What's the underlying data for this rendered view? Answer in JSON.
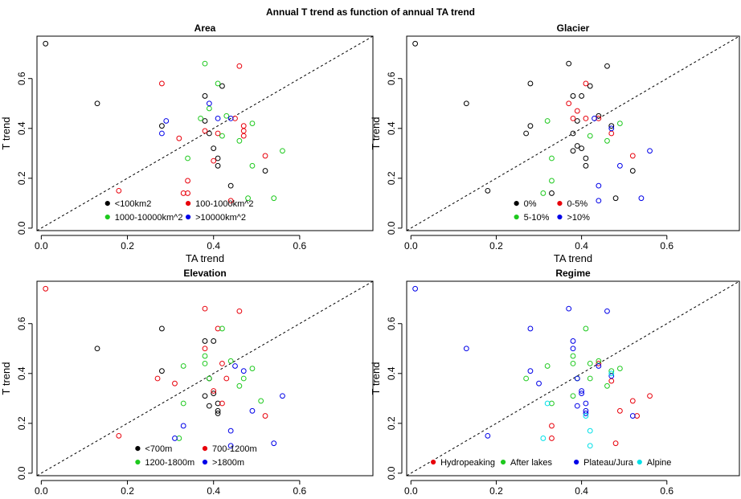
{
  "figure": {
    "title": "Annual T trend as function of annual TA trend"
  },
  "chart_data": [
    {
      "type": "scatter",
      "title": "Area",
      "xlabel": "TA trend",
      "ylabel": "T trend",
      "xlim": [
        -0.01,
        0.77
      ],
      "ylim": [
        -0.01,
        0.77
      ],
      "xticks": [
        "0.0",
        "0.2",
        "0.4",
        "0.6"
      ],
      "yticks": [
        "0.0",
        "0.2",
        "0.4",
        "0.6"
      ],
      "reference_line": "y = x (dashed)",
      "legend_position": "bottom-center",
      "series": [
        {
          "name": "<100km2",
          "color": "#000000",
          "points": [
            [
              0.01,
              0.74
            ],
            [
              0.13,
              0.5
            ],
            [
              0.28,
              0.41
            ],
            [
              0.38,
              0.53
            ],
            [
              0.38,
              0.43
            ],
            [
              0.39,
              0.38
            ],
            [
              0.4,
              0.32
            ],
            [
              0.41,
              0.28
            ],
            [
              0.41,
              0.25
            ],
            [
              0.42,
              0.57
            ],
            [
              0.44,
              0.17
            ],
            [
              0.52,
              0.23
            ]
          ]
        },
        {
          "name": "100-1000km^2",
          "color": "#e8000b",
          "points": [
            [
              0.18,
              0.15
            ],
            [
              0.28,
              0.58
            ],
            [
              0.32,
              0.36
            ],
            [
              0.33,
              0.14
            ],
            [
              0.34,
              0.19
            ],
            [
              0.34,
              0.14
            ],
            [
              0.38,
              0.39
            ],
            [
              0.4,
              0.27
            ],
            [
              0.41,
              0.38
            ],
            [
              0.44,
              0.11
            ],
            [
              0.45,
              0.44
            ],
            [
              0.46,
              0.65
            ],
            [
              0.47,
              0.41
            ],
            [
              0.47,
              0.39
            ],
            [
              0.47,
              0.37
            ],
            [
              0.52,
              0.29
            ]
          ]
        },
        {
          "name": "1000-10000km^2",
          "color": "#1ec91e",
          "points": [
            [
              0.34,
              0.28
            ],
            [
              0.37,
              0.44
            ],
            [
              0.38,
              0.66
            ],
            [
              0.39,
              0.48
            ],
            [
              0.41,
              0.58
            ],
            [
              0.42,
              0.37
            ],
            [
              0.43,
              0.45
            ],
            [
              0.46,
              0.35
            ],
            [
              0.48,
              0.12
            ],
            [
              0.49,
              0.42
            ],
            [
              0.49,
              0.25
            ],
            [
              0.54,
              0.12
            ],
            [
              0.56,
              0.31
            ]
          ]
        },
        {
          "name": ">10000km^2",
          "color": "#0000e8",
          "points": [
            [
              0.28,
              0.38
            ],
            [
              0.29,
              0.43
            ],
            [
              0.39,
              0.5
            ],
            [
              0.41,
              0.44
            ],
            [
              0.44,
              0.44
            ]
          ]
        }
      ]
    },
    {
      "type": "scatter",
      "title": "Glacier",
      "xlabel": "TA trend",
      "ylabel": "T trend",
      "xlim": [
        -0.01,
        0.77
      ],
      "ylim": [
        -0.01,
        0.77
      ],
      "xticks": [
        "0.0",
        "0.2",
        "0.4",
        "0.6"
      ],
      "yticks": [
        "0.0",
        "0.2",
        "0.4",
        "0.6"
      ],
      "reference_line": "y = x (dashed)",
      "legend_position": "bottom-center",
      "series": [
        {
          "name": "0%",
          "color": "#000000",
          "points": [
            [
              0.01,
              0.74
            ],
            [
              0.13,
              0.5
            ],
            [
              0.18,
              0.15
            ],
            [
              0.28,
              0.41
            ],
            [
              0.27,
              0.38
            ],
            [
              0.28,
              0.58
            ],
            [
              0.33,
              0.14
            ],
            [
              0.37,
              0.66
            ],
            [
              0.38,
              0.53
            ],
            [
              0.39,
              0.43
            ],
            [
              0.38,
              0.38
            ],
            [
              0.39,
              0.33
            ],
            [
              0.4,
              0.32
            ],
            [
              0.41,
              0.28
            ],
            [
              0.41,
              0.25
            ],
            [
              0.42,
              0.57
            ],
            [
              0.44,
              0.45
            ],
            [
              0.46,
              0.65
            ],
            [
              0.47,
              0.41
            ],
            [
              0.48,
              0.12
            ],
            [
              0.52,
              0.23
            ],
            [
              0.4,
              0.53
            ],
            [
              0.38,
              0.31
            ]
          ]
        },
        {
          "name": "0-5%",
          "color": "#e8000b",
          "points": [
            [
              0.37,
              0.5
            ],
            [
              0.39,
              0.47
            ],
            [
              0.41,
              0.44
            ],
            [
              0.41,
              0.58
            ],
            [
              0.47,
              0.38
            ],
            [
              0.52,
              0.29
            ],
            [
              0.38,
              0.44
            ],
            [
              0.44,
              0.44
            ]
          ]
        },
        {
          "name": "5-10%",
          "color": "#1ec91e",
          "points": [
            [
              0.32,
              0.43
            ],
            [
              0.33,
              0.28
            ],
            [
              0.33,
              0.19
            ],
            [
              0.31,
              0.14
            ],
            [
              0.42,
              0.37
            ],
            [
              0.46,
              0.35
            ],
            [
              0.49,
              0.42
            ]
          ]
        },
        {
          "name": ">10%",
          "color": "#0000e8",
          "points": [
            [
              0.43,
              0.44
            ],
            [
              0.44,
              0.11
            ],
            [
              0.44,
              0.17
            ],
            [
              0.47,
              0.4
            ],
            [
              0.49,
              0.25
            ],
            [
              0.54,
              0.12
            ],
            [
              0.56,
              0.31
            ]
          ]
        }
      ]
    },
    {
      "type": "scatter",
      "title": "Elevation",
      "xlabel": "TA trend",
      "ylabel": "T trend",
      "xlim": [
        -0.01,
        0.77
      ],
      "ylim": [
        -0.01,
        0.77
      ],
      "xticks": [
        "0.0",
        "0.2",
        "0.4",
        "0.6"
      ],
      "yticks": [
        "0.0",
        "0.2",
        "0.4",
        "0.6"
      ],
      "reference_line": "y = x (dashed)",
      "legend_position": "bottom-center",
      "series": [
        {
          "name": "<700m",
          "color": "#000000",
          "points": [
            [
              0.13,
              0.5
            ],
            [
              0.28,
              0.58
            ],
            [
              0.28,
              0.41
            ],
            [
              0.38,
              0.53
            ],
            [
              0.39,
              0.38
            ],
            [
              0.4,
              0.32
            ],
            [
              0.4,
              0.53
            ],
            [
              0.41,
              0.28
            ],
            [
              0.41,
              0.25
            ],
            [
              0.41,
              0.24
            ],
            [
              0.38,
              0.31
            ],
            [
              0.39,
              0.27
            ]
          ]
        },
        {
          "name": "700-1200m",
          "color": "#e8000b",
          "points": [
            [
              0.01,
              0.74
            ],
            [
              0.18,
              0.15
            ],
            [
              0.27,
              0.38
            ],
            [
              0.31,
              0.36
            ],
            [
              0.38,
              0.66
            ],
            [
              0.38,
              0.5
            ],
            [
              0.41,
              0.58
            ],
            [
              0.42,
              0.44
            ],
            [
              0.42,
              0.28
            ],
            [
              0.46,
              0.65
            ],
            [
              0.43,
              0.38
            ],
            [
              0.52,
              0.23
            ],
            [
              0.4,
              0.33
            ]
          ]
        },
        {
          "name": "1200-1800m",
          "color": "#1ec91e",
          "points": [
            [
              0.32,
              0.14
            ],
            [
              0.33,
              0.43
            ],
            [
              0.33,
              0.28
            ],
            [
              0.38,
              0.44
            ],
            [
              0.39,
              0.38
            ],
            [
              0.38,
              0.47
            ],
            [
              0.42,
              0.58
            ],
            [
              0.44,
              0.45
            ],
            [
              0.46,
              0.35
            ],
            [
              0.47,
              0.38
            ],
            [
              0.49,
              0.42
            ],
            [
              0.51,
              0.29
            ]
          ]
        },
        {
          "name": ">1800m",
          "color": "#0000e8",
          "points": [
            [
              0.31,
              0.14
            ],
            [
              0.33,
              0.19
            ],
            [
              0.44,
              0.17
            ],
            [
              0.44,
              0.11
            ],
            [
              0.47,
              0.41
            ],
            [
              0.49,
              0.25
            ],
            [
              0.54,
              0.12
            ],
            [
              0.56,
              0.31
            ],
            [
              0.45,
              0.43
            ]
          ]
        }
      ]
    },
    {
      "type": "scatter",
      "title": "Regime",
      "xlabel": "TA trend",
      "ylabel": "T trend",
      "xlim": [
        -0.01,
        0.77
      ],
      "ylim": [
        -0.01,
        0.77
      ],
      "xticks": [
        "0.0",
        "0.2",
        "0.4",
        "0.6"
      ],
      "yticks": [
        "0.0",
        "0.2",
        "0.4",
        "0.6"
      ],
      "reference_line": "y = x (dashed)",
      "legend_position": "bottom",
      "series": [
        {
          "name": "Hydropeaking",
          "color": "#e8000b",
          "points": [
            [
              0.33,
              0.19
            ],
            [
              0.33,
              0.14
            ],
            [
              0.44,
              0.44
            ],
            [
              0.47,
              0.37
            ],
            [
              0.48,
              0.12
            ],
            [
              0.52,
              0.29
            ],
            [
              0.53,
              0.23
            ],
            [
              0.56,
              0.31
            ],
            [
              0.49,
              0.25
            ]
          ]
        },
        {
          "name": "After lakes",
          "color": "#1ec91e",
          "points": [
            [
              0.27,
              0.38
            ],
            [
              0.32,
              0.43
            ],
            [
              0.33,
              0.28
            ],
            [
              0.38,
              0.44
            ],
            [
              0.38,
              0.47
            ],
            [
              0.39,
              0.38
            ],
            [
              0.41,
              0.58
            ],
            [
              0.42,
              0.44
            ],
            [
              0.42,
              0.38
            ],
            [
              0.44,
              0.45
            ],
            [
              0.46,
              0.35
            ],
            [
              0.47,
              0.41
            ],
            [
              0.49,
              0.42
            ],
            [
              0.38,
              0.31
            ]
          ]
        },
        {
          "name": "Plateau/Jura",
          "color": "#0000e8",
          "points": [
            [
              0.01,
              0.74
            ],
            [
              0.13,
              0.5
            ],
            [
              0.18,
              0.15
            ],
            [
              0.28,
              0.41
            ],
            [
              0.28,
              0.58
            ],
            [
              0.3,
              0.36
            ],
            [
              0.37,
              0.66
            ],
            [
              0.38,
              0.53
            ],
            [
              0.38,
              0.5
            ],
            [
              0.39,
              0.38
            ],
            [
              0.4,
              0.32
            ],
            [
              0.4,
              0.33
            ],
            [
              0.41,
              0.28
            ],
            [
              0.41,
              0.25
            ],
            [
              0.41,
              0.24
            ],
            [
              0.44,
              0.43
            ],
            [
              0.46,
              0.65
            ],
            [
              0.47,
              0.39
            ],
            [
              0.52,
              0.23
            ],
            [
              0.39,
              0.27
            ]
          ]
        },
        {
          "name": "Alpine",
          "color": "#00e0e8",
          "points": [
            [
              0.31,
              0.14
            ],
            [
              0.32,
              0.28
            ],
            [
              0.41,
              0.23
            ],
            [
              0.42,
              0.17
            ],
            [
              0.42,
              0.11
            ],
            [
              0.47,
              0.4
            ]
          ]
        }
      ]
    }
  ]
}
